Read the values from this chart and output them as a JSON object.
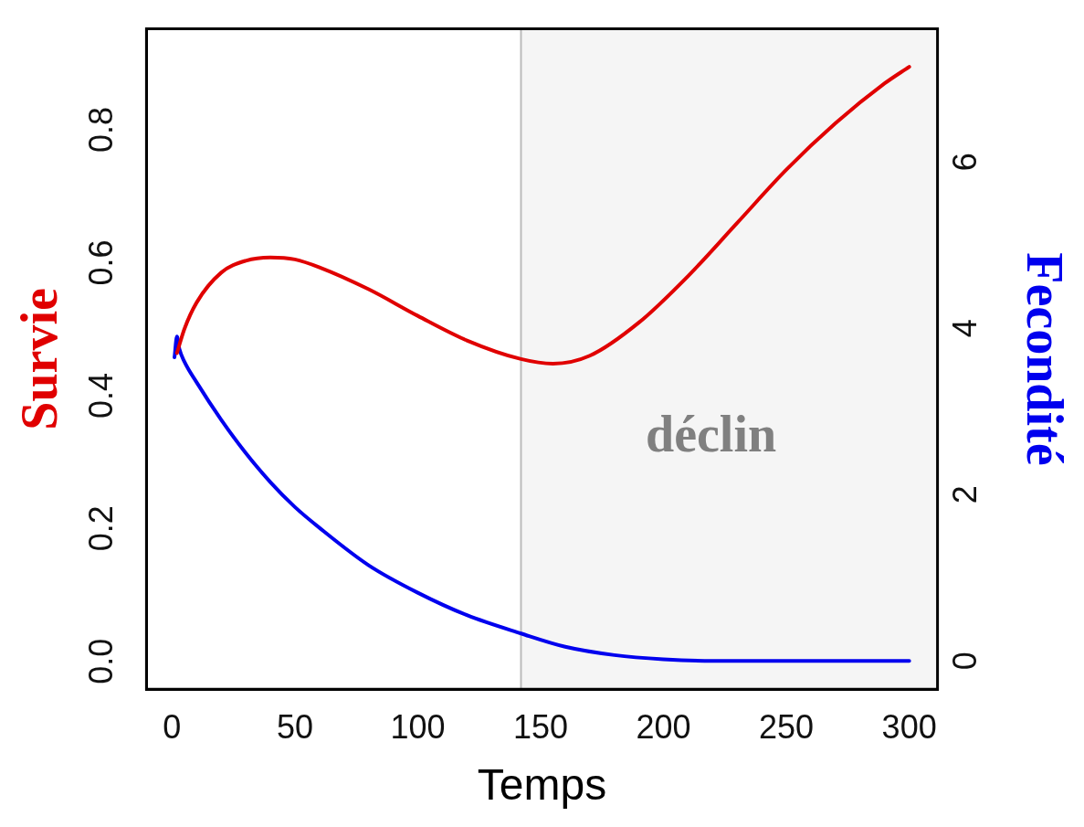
{
  "chart_data": {
    "type": "line",
    "xlabel": "Temps",
    "ylabel": "Survie",
    "y2label": "Fecondité",
    "xlim": [
      -10.4,
      311.5
    ],
    "xticks": [
      0,
      50,
      100,
      150,
      200,
      250,
      300
    ],
    "ylim": [
      -0.042,
      0.952
    ],
    "yticks": [
      {
        "value": 0,
        "label": "0.0"
      },
      {
        "value": 0.2,
        "label": "0.2"
      },
      {
        "value": 0.4,
        "label": "0.4"
      },
      {
        "value": 0.6,
        "label": "0.6"
      },
      {
        "value": 0.8,
        "label": "0.8"
      }
    ],
    "y2lim": [
      -0.34,
      7.6
    ],
    "y2ticks": [
      0,
      2,
      4,
      6
    ],
    "grid": false,
    "legend": false,
    "marker": "none",
    "line_style": "solid",
    "series": [
      {
        "color": "#e00000",
        "x": [
          2,
          5,
          10,
          20,
          30,
          40,
          50,
          60,
          80,
          100,
          120,
          142,
          155,
          170,
          190,
          210,
          230,
          250,
          270,
          290,
          300
        ],
        "values": [
          0.464,
          0.5,
          0.54,
          0.585,
          0.603,
          0.608,
          0.605,
          0.593,
          0.56,
          0.52,
          0.483,
          0.455,
          0.448,
          0.46,
          0.51,
          0.58,
          0.66,
          0.74,
          0.81,
          0.87,
          0.895
        ]
      },
      {
        "color": "#0000ee",
        "axis": "y2",
        "x": [
          1,
          2,
          3,
          5,
          10,
          20,
          30,
          40,
          50,
          60,
          80,
          100,
          120,
          142,
          160,
          180,
          200,
          220,
          250,
          300
        ],
        "values": [
          3.65,
          3.9,
          3.75,
          3.6,
          3.35,
          2.9,
          2.5,
          2.15,
          1.85,
          1.6,
          1.15,
          0.82,
          0.55,
          0.33,
          0.17,
          0.07,
          0.02,
          0,
          0,
          0
        ]
      }
    ],
    "bands": [
      {
        "axis": "x",
        "from": 142,
        "to": 311.5,
        "label": "déclin",
        "color": "#f5f5f5"
      }
    ],
    "ref_lines": [
      {
        "axis": "x",
        "value": 142,
        "color": "#bbbbbb"
      }
    ]
  }
}
